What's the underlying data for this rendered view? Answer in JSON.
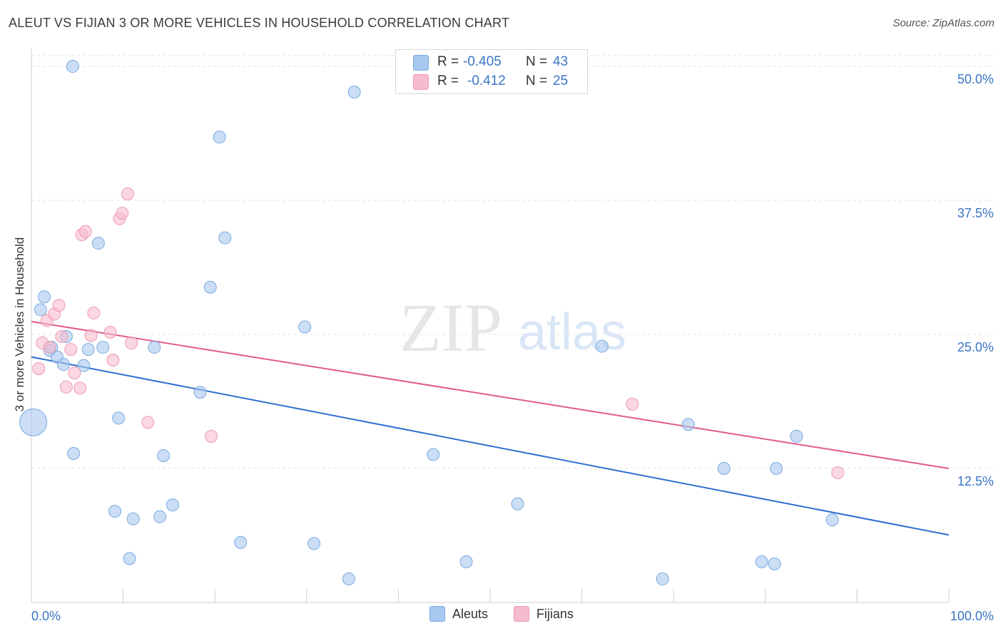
{
  "title": "ALEUT VS FIJIAN 3 OR MORE VEHICLES IN HOUSEHOLD CORRELATION CHART",
  "source": "Source: ZipAtlas.com",
  "watermark": {
    "zip": "ZIP",
    "atlas": "atlas"
  },
  "stats": {
    "r_label": "R =",
    "n_label": "N =",
    "aleut": {
      "r": "-0.405",
      "n": "43"
    },
    "fijian": {
      "r": "-0.412",
      "n": "25"
    }
  },
  "legend": {
    "aleut": "Aleuts",
    "fijian": "Fijians"
  },
  "colors": {
    "aleut_fill": "#a9c8ef",
    "aleut_stroke": "#7aaae0",
    "aleut_line": "#2f6fd0",
    "fijian_fill": "#f6bccd",
    "fijian_stroke": "#ee9ab3",
    "fijian_line": "#e05c8a",
    "tick_text": "#3a75c4",
    "grid": "#e3e3e3"
  },
  "chart_data": {
    "type": "scatter",
    "title": "ALEUT VS FIJIAN 3 OR MORE VEHICLES IN HOUSEHOLD CORRELATION CHART",
    "xlabel": "",
    "ylabel": "3 or more Vehicles in Household",
    "xlim": [
      0,
      100
    ],
    "ylim": [
      0,
      51
    ],
    "x_tick_labels": [
      "0.0%",
      "100.0%"
    ],
    "y_ticks": [
      12.5,
      25.0,
      37.5,
      50.0
    ],
    "y_tick_labels": [
      "12.5%",
      "25.0%",
      "37.5%",
      "50.0%"
    ],
    "series": [
      {
        "name": "Aleuts",
        "points": [
          [
            0.2,
            16.8
          ],
          [
            1.0,
            27.3
          ],
          [
            1.4,
            28.5
          ],
          [
            2.0,
            23.5
          ],
          [
            2.2,
            23.8
          ],
          [
            2.8,
            22.9
          ],
          [
            3.5,
            22.2
          ],
          [
            3.8,
            24.8
          ],
          [
            4.6,
            13.9
          ],
          [
            5.7,
            22.1
          ],
          [
            6.2,
            23.6
          ],
          [
            7.3,
            33.5
          ],
          [
            7.8,
            23.8
          ],
          [
            9.1,
            8.5
          ],
          [
            9.5,
            17.2
          ],
          [
            10.7,
            4.1
          ],
          [
            11.1,
            7.8
          ],
          [
            13.4,
            23.8
          ],
          [
            14.0,
            8.0
          ],
          [
            14.4,
            13.7
          ],
          [
            15.4,
            9.1
          ],
          [
            18.4,
            19.6
          ],
          [
            19.5,
            29.4
          ],
          [
            20.5,
            43.4
          ],
          [
            21.1,
            34.0
          ],
          [
            22.8,
            5.6
          ],
          [
            29.8,
            25.7
          ],
          [
            30.8,
            5.5
          ],
          [
            34.6,
            2.2
          ],
          [
            35.2,
            47.6
          ],
          [
            43.8,
            13.8
          ],
          [
            47.4,
            3.8
          ],
          [
            53.0,
            9.2
          ],
          [
            62.2,
            23.9
          ],
          [
            68.8,
            2.2
          ],
          [
            71.6,
            16.6
          ],
          [
            75.5,
            12.5
          ],
          [
            79.6,
            3.8
          ],
          [
            81.0,
            3.6
          ],
          [
            81.2,
            12.5
          ],
          [
            83.4,
            15.5
          ],
          [
            87.3,
            7.7
          ],
          [
            4.5,
            50.0
          ]
        ]
      },
      {
        "name": "Fijians",
        "points": [
          [
            0.8,
            21.8
          ],
          [
            1.2,
            24.2
          ],
          [
            1.7,
            26.3
          ],
          [
            2.0,
            23.8
          ],
          [
            2.5,
            26.9
          ],
          [
            3.0,
            27.7
          ],
          [
            3.3,
            24.8
          ],
          [
            3.8,
            20.1
          ],
          [
            4.3,
            23.6
          ],
          [
            4.7,
            21.4
          ],
          [
            5.3,
            20.0
          ],
          [
            5.5,
            34.3
          ],
          [
            5.9,
            34.6
          ],
          [
            6.5,
            24.9
          ],
          [
            8.6,
            25.2
          ],
          [
            8.9,
            22.6
          ],
          [
            9.6,
            35.8
          ],
          [
            9.9,
            36.3
          ],
          [
            10.5,
            38.1
          ],
          [
            10.9,
            24.2
          ],
          [
            12.7,
            16.8
          ],
          [
            19.6,
            15.5
          ],
          [
            65.5,
            18.5
          ],
          [
            87.9,
            12.1
          ],
          [
            6.8,
            27.0
          ]
        ]
      }
    ],
    "trendlines": [
      {
        "name": "Aleuts",
        "x": [
          0,
          100
        ],
        "y": [
          22.9,
          6.3
        ]
      },
      {
        "name": "Fijians",
        "x": [
          0,
          100
        ],
        "y": [
          26.2,
          12.5
        ]
      }
    ]
  }
}
